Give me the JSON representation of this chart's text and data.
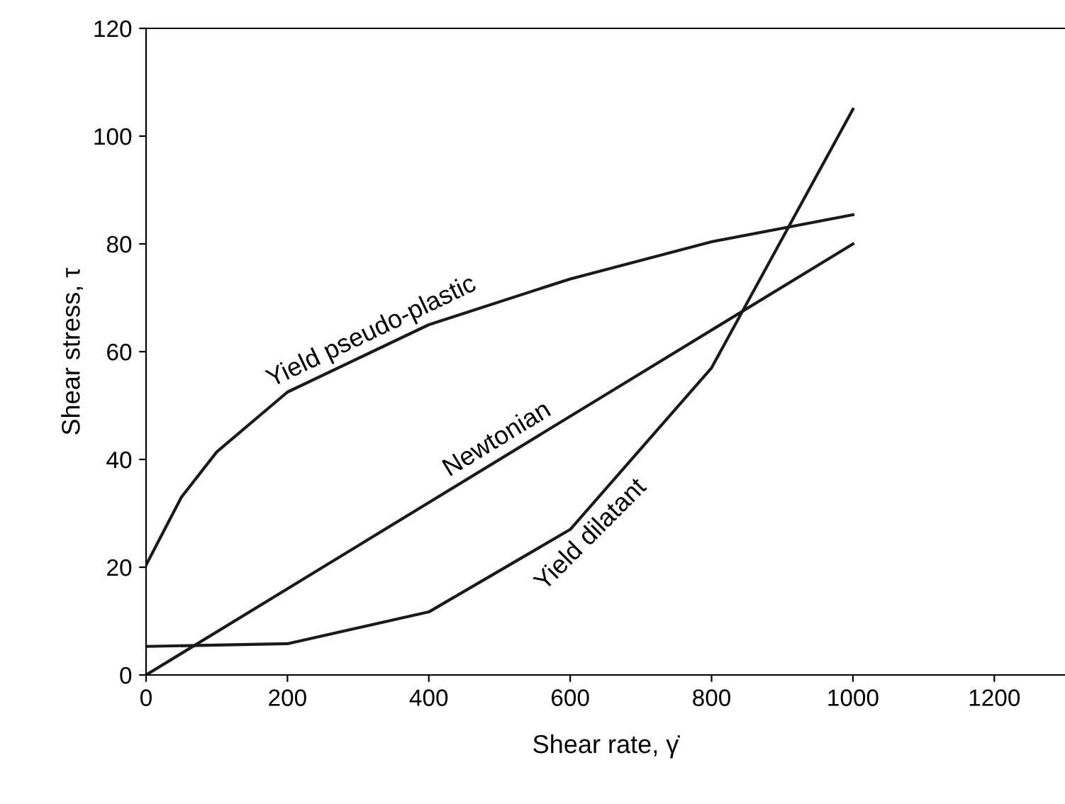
{
  "chart_data": {
    "type": "line",
    "xlabel": "Shear rate, γ̇",
    "ylabel": "Shear stress, τ",
    "xlim": [
      0,
      1300
    ],
    "xticks": [
      0,
      200,
      400,
      600,
      800,
      1000,
      1200
    ],
    "ylim": [
      0,
      120
    ],
    "yticks": [
      0,
      20,
      40,
      60,
      80,
      100,
      120
    ],
    "grid": false,
    "legend": false,
    "marker": "none",
    "line_style": "solid",
    "series": [
      {
        "name": "Yield pseudo-plastic",
        "color": "#1a1a1a",
        "x": [
          0,
          50,
          100,
          200,
          400,
          600,
          800,
          1000
        ],
        "values": [
          20.4,
          33,
          41.4,
          52.5,
          65,
          73.5,
          80.4,
          85.4
        ]
      },
      {
        "name": "Newtonian",
        "color": "#1a1a1a",
        "x": [
          0,
          1000
        ],
        "values": [
          0,
          80
        ]
      },
      {
        "name": "Yield dilatant",
        "color": "#1a1a1a",
        "x": [
          0,
          200,
          400,
          600,
          800,
          1000
        ],
        "values": [
          5.3,
          5.8,
          11.7,
          27,
          57,
          105
        ]
      }
    ]
  }
}
